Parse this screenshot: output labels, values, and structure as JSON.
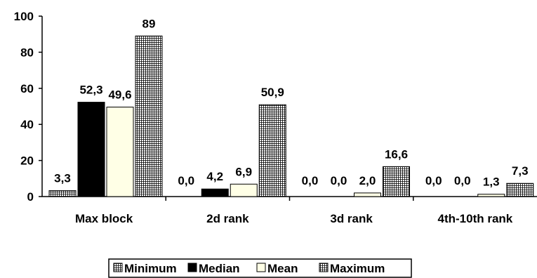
{
  "chart_data": {
    "type": "bar",
    "categories": [
      "Max block",
      "2d rank",
      "3d rank",
      "4th-10th rank"
    ],
    "series": [
      {
        "name": "Minimum",
        "values": [
          3.3,
          0.0,
          0.0,
          0.0
        ],
        "labels": [
          "3,3",
          "0,0",
          "0,0",
          "0,0"
        ],
        "pattern": "grid",
        "color": "#ffffff"
      },
      {
        "name": "Median",
        "values": [
          52.3,
          4.2,
          0.0,
          0.0
        ],
        "labels": [
          "52,3",
          "4,2",
          "0,0",
          "0,0"
        ],
        "pattern": "solid",
        "color": "#000000"
      },
      {
        "name": "Mean",
        "values": [
          49.6,
          6.9,
          2.0,
          1.3
        ],
        "labels": [
          "49,6",
          "6,9",
          "2,0",
          "1,3"
        ],
        "pattern": "solid",
        "color": "#ffffe6"
      },
      {
        "name": "Maximum",
        "values": [
          89,
          50.9,
          16.6,
          7.3
        ],
        "labels": [
          "89",
          "50,9",
          "16,6",
          "7,3"
        ],
        "pattern": "grid",
        "color": "#ffffff"
      }
    ],
    "ylim": [
      0,
      100
    ],
    "yticks": [
      0,
      20,
      40,
      60,
      80,
      100
    ],
    "title": "",
    "xlabel": "",
    "ylabel": "",
    "grid": false,
    "legend_position": "bottom"
  }
}
